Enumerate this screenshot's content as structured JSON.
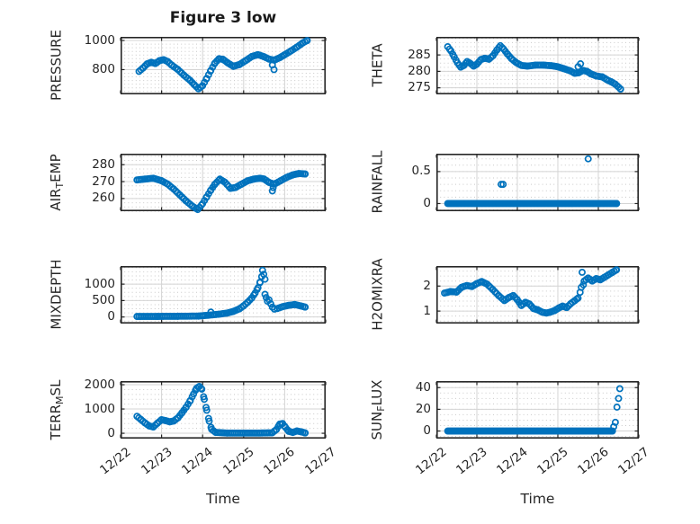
{
  "figure": {
    "title": "Figure 3 low",
    "xlabel": "Time",
    "background": "#ffffff",
    "marker_color": "#0072BD",
    "axis_color": "#262626",
    "major_grid_color": "#d4d4d4",
    "minor_grid_color": "#c9c9c9",
    "tick_label_color": "#262626",
    "xticks": {
      "values": [
        0,
        1,
        2,
        3,
        4,
        5
      ],
      "labels": [
        "12/22",
        "12/23",
        "12/24",
        "12/25",
        "12/26",
        "12/27"
      ]
    }
  },
  "chart_data": [
    {
      "id": "pressure",
      "type": "scatter",
      "row": 0,
      "col": 0,
      "ylabel": [
        {
          "t": "PRESSURE"
        }
      ],
      "xlim": [
        0,
        5
      ],
      "ylim": [
        630,
        1025
      ],
      "yticks": [
        800,
        1000
      ],
      "yminor_step": 25,
      "runs": [
        [
          [
            0.45,
            788
          ],
          [
            0.55,
            812
          ],
          [
            0.65,
            840
          ],
          [
            0.75,
            850
          ],
          [
            0.85,
            842
          ],
          [
            0.95,
            862
          ],
          [
            1.05,
            868
          ],
          [
            1.15,
            855
          ],
          [
            1.25,
            830
          ],
          [
            1.4,
            800
          ],
          [
            1.55,
            760
          ],
          [
            1.7,
            725
          ],
          [
            1.8,
            695
          ],
          [
            1.9,
            668
          ],
          [
            2.0,
            690
          ],
          [
            2.1,
            740
          ],
          [
            2.2,
            795
          ],
          [
            2.3,
            845
          ],
          [
            2.4,
            875
          ],
          [
            2.5,
            870
          ],
          [
            2.62,
            845
          ],
          [
            2.75,
            822
          ],
          [
            2.9,
            835
          ],
          [
            3.05,
            862
          ],
          [
            3.2,
            890
          ],
          [
            3.35,
            903
          ],
          [
            3.5,
            888
          ],
          [
            3.62,
            872
          ],
          [
            3.75,
            865
          ],
          [
            3.88,
            882
          ],
          [
            4.0,
            902
          ],
          [
            4.15,
            928
          ],
          [
            4.3,
            955
          ],
          [
            4.45,
            985
          ],
          [
            4.55,
            1000
          ]
        ]
      ],
      "points": [
        [
          3.74,
          800
        ],
        [
          3.7,
          832
        ]
      ]
    },
    {
      "id": "theta",
      "type": "scatter",
      "row": 0,
      "col": 1,
      "ylabel": [
        {
          "t": "THETA"
        }
      ],
      "xlim": [
        0,
        5
      ],
      "ylim": [
        273,
        290.5
      ],
      "yticks": [
        275,
        280,
        285
      ],
      "yminor_step": 1.25,
      "runs": [
        [
          [
            0.28,
            287.5
          ],
          [
            0.36,
            286.2
          ],
          [
            0.44,
            284.4
          ],
          [
            0.52,
            282.6
          ],
          [
            0.6,
            281.3
          ],
          [
            0.68,
            281.8
          ],
          [
            0.76,
            283
          ],
          [
            0.84,
            282.4
          ],
          [
            0.92,
            281.6
          ],
          [
            1.0,
            282.2
          ],
          [
            1.1,
            283.6
          ],
          [
            1.2,
            284
          ],
          [
            1.3,
            283.7
          ],
          [
            1.4,
            284.8
          ],
          [
            1.5,
            286.6
          ],
          [
            1.58,
            287.8
          ],
          [
            1.66,
            286.8
          ],
          [
            1.76,
            285.2
          ],
          [
            1.86,
            283.8
          ],
          [
            1.98,
            282.6
          ],
          [
            2.1,
            281.8
          ],
          [
            2.25,
            281.6
          ],
          [
            2.45,
            281.9
          ],
          [
            2.65,
            281.9
          ],
          [
            2.85,
            281.7
          ],
          [
            3.0,
            281.4
          ],
          [
            3.15,
            280.8
          ],
          [
            3.3,
            280.2
          ],
          [
            3.42,
            279.4
          ],
          [
            3.52,
            279.6
          ],
          [
            3.62,
            280.3
          ],
          [
            3.72,
            280.0
          ],
          [
            3.82,
            279.2
          ],
          [
            3.95,
            278.6
          ],
          [
            4.1,
            278.3
          ],
          [
            4.22,
            277.4
          ],
          [
            4.32,
            276.8
          ],
          [
            4.42,
            276.1
          ],
          [
            4.5,
            275.2
          ],
          [
            4.55,
            274.6
          ]
        ]
      ],
      "points": [
        [
          3.56,
          282.3
        ],
        [
          3.5,
          281.4
        ]
      ]
    },
    {
      "id": "air_temp",
      "type": "scatter",
      "row": 1,
      "col": 0,
      "ylabel": [
        {
          "t": "AIR"
        },
        {
          "s": "T"
        },
        {
          "t": "EMP"
        }
      ],
      "xlim": [
        0,
        5
      ],
      "ylim": [
        252.5,
        286.5
      ],
      "yticks": [
        260,
        270,
        280
      ],
      "yminor_step": 2.5,
      "runs": [
        [
          [
            0.4,
            271
          ],
          [
            0.6,
            271.5
          ],
          [
            0.8,
            272
          ],
          [
            1.0,
            270.5
          ],
          [
            1.15,
            268.5
          ],
          [
            1.3,
            265.5
          ],
          [
            1.45,
            262
          ],
          [
            1.6,
            258.5
          ],
          [
            1.75,
            255.5
          ],
          [
            1.88,
            253.5
          ],
          [
            2.0,
            257
          ],
          [
            2.1,
            261
          ],
          [
            2.2,
            265
          ],
          [
            2.3,
            268.5
          ],
          [
            2.42,
            271.5
          ],
          [
            2.55,
            269.5
          ],
          [
            2.68,
            266
          ],
          [
            2.8,
            266.5
          ],
          [
            2.95,
            268.5
          ],
          [
            3.1,
            270.5
          ],
          [
            3.25,
            271.5
          ],
          [
            3.4,
            272
          ],
          [
            3.5,
            271.5
          ],
          [
            3.62,
            269.5
          ],
          [
            3.75,
            268.5
          ],
          [
            3.9,
            270.5
          ],
          [
            4.05,
            272.5
          ],
          [
            4.2,
            274
          ],
          [
            4.35,
            274.8
          ],
          [
            4.5,
            274.5
          ]
        ]
      ],
      "points": [
        [
          3.7,
          264.5
        ],
        [
          3.72,
          266.5
        ]
      ]
    },
    {
      "id": "rainfall",
      "type": "scatter",
      "row": 1,
      "col": 1,
      "ylabel": [
        {
          "t": "RAINFALL"
        }
      ],
      "xlim": [
        0,
        5
      ],
      "ylim": [
        -0.12,
        0.78
      ],
      "yticks": [
        0,
        0.5
      ],
      "yminor_step": 0.1,
      "marker_step": 0.03,
      "runs": [
        [
          [
            0.28,
            0
          ],
          [
            4.45,
            0
          ]
        ]
      ],
      "points": [
        [
          1.6,
          0.3
        ],
        [
          1.65,
          0.3
        ],
        [
          3.75,
          0.7
        ]
      ]
    },
    {
      "id": "mixdepth",
      "type": "scatter",
      "row": 2,
      "col": 0,
      "ylabel": [
        {
          "t": "MIXDEPTH"
        }
      ],
      "xlim": [
        0,
        5
      ],
      "ylim": [
        -200,
        1550
      ],
      "yticks": [
        0,
        500,
        1000
      ],
      "yminor_step": 125,
      "runs": [
        [
          [
            0.4,
            15
          ],
          [
            0.9,
            18
          ],
          [
            1.4,
            22
          ],
          [
            1.9,
            28
          ],
          [
            2.15,
            55
          ],
          [
            2.4,
            85
          ],
          [
            2.6,
            120
          ],
          [
            2.75,
            170
          ],
          [
            2.9,
            250
          ],
          [
            3.0,
            340
          ],
          [
            3.1,
            450
          ],
          [
            3.2,
            580
          ],
          [
            3.28,
            730
          ],
          [
            3.35,
            890
          ],
          [
            3.4,
            1060
          ],
          [
            3.44,
            1230
          ]
        ],
        [
          [
            3.82,
            255
          ],
          [
            3.95,
            315
          ],
          [
            4.1,
            355
          ],
          [
            4.25,
            380
          ],
          [
            4.4,
            335
          ],
          [
            4.5,
            300
          ]
        ]
      ],
      "points": [
        [
          3.46,
          1420
        ],
        [
          3.49,
          1300
        ],
        [
          3.52,
          1150
        ],
        [
          3.52,
          690
        ],
        [
          3.55,
          590
        ],
        [
          3.58,
          480
        ],
        [
          3.62,
          520
        ],
        [
          3.66,
          400
        ],
        [
          3.7,
          300
        ],
        [
          3.75,
          240
        ],
        [
          2.2,
          150
        ]
      ]
    },
    {
      "id": "h2omixra",
      "type": "scatter",
      "row": 2,
      "col": 1,
      "ylabel": [
        {
          "t": "H2OMIXRA"
        }
      ],
      "xlim": [
        0,
        5
      ],
      "ylim": [
        0.5,
        2.8
      ],
      "yticks": [
        1,
        2
      ],
      "yminor_step": 0.2,
      "runs": [
        [
          [
            0.2,
            1.72
          ],
          [
            0.35,
            1.78
          ],
          [
            0.5,
            1.76
          ],
          [
            0.62,
            1.95
          ],
          [
            0.75,
            2.02
          ],
          [
            0.88,
            1.98
          ],
          [
            1.0,
            2.1
          ],
          [
            1.12,
            2.18
          ],
          [
            1.25,
            2.08
          ],
          [
            1.4,
            1.85
          ],
          [
            1.55,
            1.6
          ],
          [
            1.68,
            1.42
          ],
          [
            1.8,
            1.55
          ],
          [
            1.9,
            1.62
          ],
          [
            2.0,
            1.45
          ],
          [
            2.1,
            1.22
          ],
          [
            2.2,
            1.35
          ],
          [
            2.3,
            1.28
          ],
          [
            2.4,
            1.1
          ],
          [
            2.5,
            1.05
          ],
          [
            2.62,
            0.95
          ],
          [
            2.72,
            0.92
          ],
          [
            2.82,
            0.96
          ],
          [
            2.92,
            1.02
          ],
          [
            3.02,
            1.12
          ],
          [
            3.12,
            1.2
          ],
          [
            3.22,
            1.14
          ],
          [
            3.32,
            1.3
          ],
          [
            3.42,
            1.42
          ],
          [
            3.5,
            1.52
          ]
        ],
        [
          [
            3.65,
            2.2
          ],
          [
            3.75,
            2.32
          ],
          [
            3.85,
            2.2
          ],
          [
            3.95,
            2.3
          ],
          [
            4.05,
            2.25
          ],
          [
            4.15,
            2.35
          ],
          [
            4.25,
            2.45
          ],
          [
            4.35,
            2.55
          ],
          [
            4.45,
            2.65
          ]
        ]
      ],
      "points": [
        [
          3.55,
          1.75
        ],
        [
          3.58,
          1.95
        ],
        [
          3.6,
          2.55
        ],
        [
          3.63,
          2.05
        ]
      ]
    },
    {
      "id": "terr_msl",
      "type": "scatter",
      "row": 3,
      "col": 0,
      "ylabel": [
        {
          "t": "TERR"
        },
        {
          "s": "M"
        },
        {
          "t": "SL"
        }
      ],
      "xlim": [
        0,
        5
      ],
      "ylim": [
        -220,
        2150
      ],
      "yticks": [
        0,
        1000,
        2000
      ],
      "yminor_step": 200,
      "runs": [
        [
          [
            0.4,
            700
          ],
          [
            0.5,
            560
          ],
          [
            0.6,
            420
          ],
          [
            0.7,
            300
          ],
          [
            0.8,
            260
          ],
          [
            0.9,
            420
          ],
          [
            1.0,
            560
          ],
          [
            1.1,
            520
          ],
          [
            1.2,
            470
          ],
          [
            1.3,
            510
          ],
          [
            1.4,
            640
          ],
          [
            1.5,
            850
          ],
          [
            1.6,
            1080
          ],
          [
            1.7,
            1350
          ],
          [
            1.78,
            1620
          ],
          [
            1.85,
            1850
          ],
          [
            1.92,
            1930
          ],
          [
            1.98,
            1820
          ],
          [
            2.04,
            1400
          ],
          [
            2.1,
            950
          ],
          [
            2.16,
            500
          ],
          [
            2.22,
            160
          ],
          [
            2.32,
            35
          ],
          [
            2.6,
            10
          ],
          [
            3.0,
            8
          ],
          [
            3.4,
            10
          ],
          [
            3.7,
            20
          ],
          [
            3.8,
            160
          ],
          [
            3.88,
            380
          ],
          [
            3.95,
            400
          ],
          [
            4.02,
            240
          ],
          [
            4.1,
            80
          ],
          [
            4.2,
            35
          ],
          [
            4.3,
            95
          ],
          [
            4.4,
            60
          ],
          [
            4.5,
            15
          ]
        ]
      ],
      "points": []
    },
    {
      "id": "sun_flux",
      "type": "scatter",
      "row": 3,
      "col": 1,
      "ylabel": [
        {
          "t": "SUN"
        },
        {
          "s": "F"
        },
        {
          "t": "LUX"
        }
      ],
      "xlim": [
        0,
        5
      ],
      "ylim": [
        -7,
        46
      ],
      "yticks": [
        0,
        20,
        40
      ],
      "yminor_step": 5,
      "marker_step": 0.03,
      "runs": [
        [
          [
            0.28,
            0
          ],
          [
            4.35,
            0
          ]
        ]
      ],
      "points": [
        [
          4.38,
          4
        ],
        [
          4.42,
          8
        ],
        [
          4.46,
          22
        ],
        [
          4.5,
          30
        ],
        [
          4.53,
          39
        ]
      ]
    }
  ]
}
